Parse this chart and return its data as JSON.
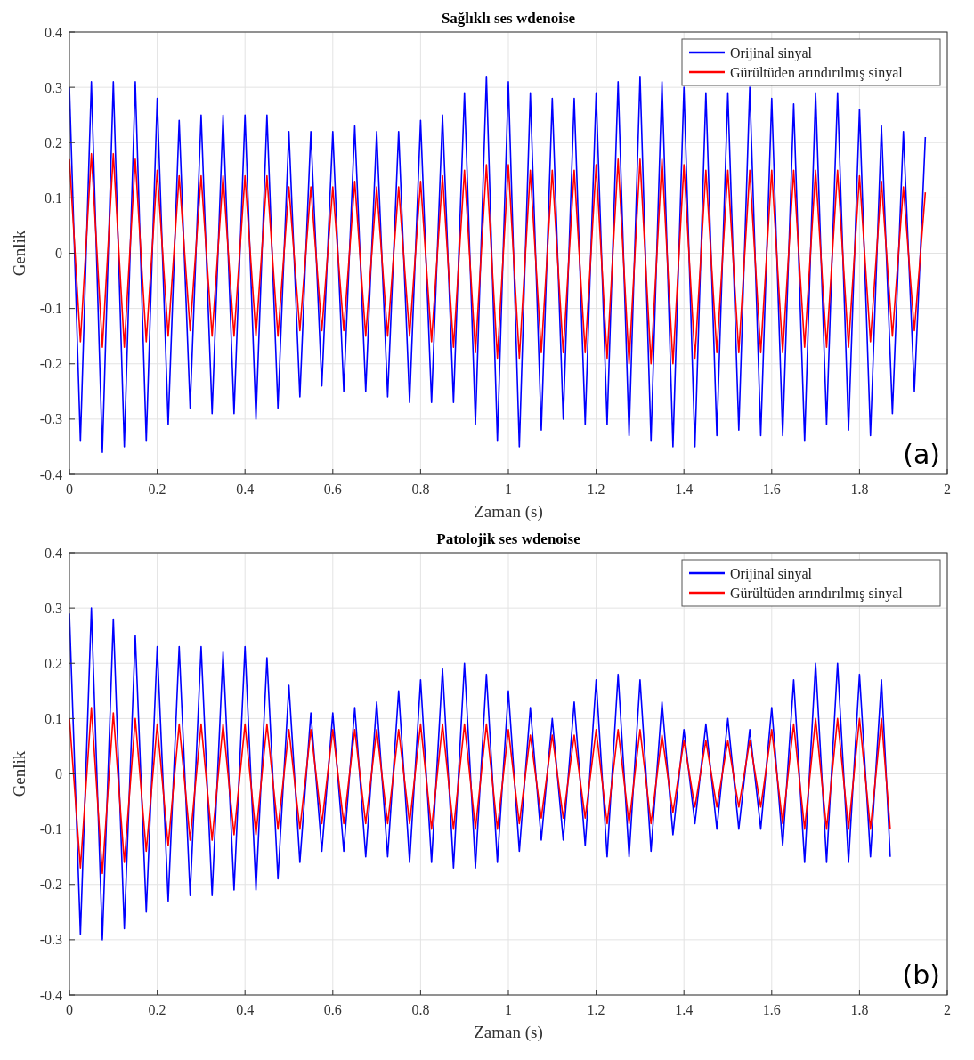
{
  "chart_data": [
    {
      "type": "line",
      "title": "Sağlıklı ses wdenoise",
      "xlabel": "Zaman (s)",
      "ylabel": "Genlik",
      "xlim": [
        0,
        2
      ],
      "xticks": [
        0,
        0.2,
        0.4,
        0.6,
        0.8,
        1,
        1.2,
        1.4,
        1.6,
        1.8,
        2
      ],
      "ylim": [
        -0.4,
        0.4
      ],
      "yticks": [
        -0.4,
        -0.3,
        -0.2,
        -0.1,
        0,
        0.1,
        0.2,
        0.3,
        0.4
      ],
      "grid": true,
      "legend": "top right",
      "annotations": [
        "(a)"
      ],
      "x": [
        0,
        0.025,
        0.05,
        0.075,
        0.1,
        0.125,
        0.15,
        0.175,
        0.2,
        0.225,
        0.25,
        0.275,
        0.3,
        0.325,
        0.35,
        0.375,
        0.4,
        0.425,
        0.45,
        0.475,
        0.5,
        0.525,
        0.55,
        0.575,
        0.6,
        0.625,
        0.65,
        0.675,
        0.7,
        0.725,
        0.75,
        0.775,
        0.8,
        0.825,
        0.85,
        0.875,
        0.9,
        0.925,
        0.95,
        0.975,
        1,
        1.025,
        1.05,
        1.075,
        1.1,
        1.125,
        1.15,
        1.175,
        1.2,
        1.225,
        1.25,
        1.275,
        1.3,
        1.325,
        1.35,
        1.375,
        1.4,
        1.425,
        1.45,
        1.475,
        1.5,
        1.525,
        1.55,
        1.575,
        1.6,
        1.625,
        1.65,
        1.675,
        1.7,
        1.725,
        1.75,
        1.775,
        1.8,
        1.825,
        1.85,
        1.875,
        1.9,
        1.925,
        1.95
      ],
      "series": [
        {
          "name": "Orijinal sinyal",
          "color": "#0000ff",
          "values": [
            0.3,
            -0.34,
            0.31,
            -0.36,
            0.31,
            -0.35,
            0.31,
            -0.34,
            0.28,
            -0.31,
            0.24,
            -0.28,
            0.25,
            -0.29,
            0.25,
            -0.29,
            0.25,
            -0.3,
            0.25,
            -0.28,
            0.22,
            -0.26,
            0.22,
            -0.24,
            0.22,
            -0.25,
            0.23,
            -0.25,
            0.22,
            -0.26,
            0.22,
            -0.27,
            0.24,
            -0.27,
            0.25,
            -0.27,
            0.29,
            -0.31,
            0.32,
            -0.34,
            0.31,
            -0.35,
            0.29,
            -0.32,
            0.28,
            -0.3,
            0.28,
            -0.31,
            0.29,
            -0.31,
            0.31,
            -0.33,
            0.32,
            -0.34,
            0.31,
            -0.35,
            0.3,
            -0.35,
            0.29,
            -0.33,
            0.29,
            -0.32,
            0.3,
            -0.33,
            0.28,
            -0.33,
            0.27,
            -0.34,
            0.29,
            -0.31,
            0.29,
            -0.32,
            0.26,
            -0.33,
            0.23,
            -0.29,
            0.22,
            -0.25,
            0.21
          ]
        },
        {
          "name": "Gürültüden arındırılmış sinyal",
          "color": "#ff0000",
          "values": [
            0.17,
            -0.16,
            0.18,
            -0.17,
            0.18,
            -0.17,
            0.17,
            -0.16,
            0.15,
            -0.15,
            0.14,
            -0.14,
            0.14,
            -0.15,
            0.14,
            -0.15,
            0.14,
            -0.15,
            0.14,
            -0.15,
            0.12,
            -0.14,
            0.12,
            -0.14,
            0.12,
            -0.14,
            0.13,
            -0.15,
            0.12,
            -0.15,
            0.12,
            -0.15,
            0.13,
            -0.16,
            0.14,
            -0.17,
            0.15,
            -0.18,
            0.16,
            -0.19,
            0.16,
            -0.19,
            0.15,
            -0.18,
            0.15,
            -0.18,
            0.15,
            -0.18,
            0.16,
            -0.19,
            0.17,
            -0.2,
            0.17,
            -0.2,
            0.17,
            -0.2,
            0.16,
            -0.19,
            0.15,
            -0.18,
            0.15,
            -0.18,
            0.15,
            -0.18,
            0.15,
            -0.18,
            0.15,
            -0.17,
            0.15,
            -0.17,
            0.15,
            -0.17,
            0.14,
            -0.16,
            0.13,
            -0.15,
            0.12,
            -0.14,
            0.11
          ]
        }
      ]
    },
    {
      "type": "line",
      "title": "Patolojik ses wdenoise",
      "xlabel": "Zaman (s)",
      "ylabel": "Genlik",
      "xlim": [
        0,
        2
      ],
      "xticks": [
        0,
        0.2,
        0.4,
        0.6,
        0.8,
        1,
        1.2,
        1.4,
        1.6,
        1.8,
        2
      ],
      "ylim": [
        -0.4,
        0.4
      ],
      "yticks": [
        -0.4,
        -0.3,
        -0.2,
        -0.1,
        0,
        0.1,
        0.2,
        0.3,
        0.4
      ],
      "grid": true,
      "legend": "top right",
      "annotations": [
        "(b)"
      ],
      "x": [
        0,
        0.025,
        0.05,
        0.075,
        0.1,
        0.125,
        0.15,
        0.175,
        0.2,
        0.225,
        0.25,
        0.275,
        0.3,
        0.325,
        0.35,
        0.375,
        0.4,
        0.425,
        0.45,
        0.475,
        0.5,
        0.525,
        0.55,
        0.575,
        0.6,
        0.625,
        0.65,
        0.675,
        0.7,
        0.725,
        0.75,
        0.775,
        0.8,
        0.825,
        0.85,
        0.875,
        0.9,
        0.925,
        0.95,
        0.975,
        1,
        1.025,
        1.05,
        1.075,
        1.1,
        1.125,
        1.15,
        1.175,
        1.2,
        1.225,
        1.25,
        1.275,
        1.3,
        1.325,
        1.35,
        1.375,
        1.4,
        1.425,
        1.45,
        1.475,
        1.5,
        1.525,
        1.55,
        1.575,
        1.6,
        1.625,
        1.65,
        1.675,
        1.7,
        1.725,
        1.75,
        1.775,
        1.8,
        1.825,
        1.85,
        1.87
      ],
      "series": [
        {
          "name": "Orijinal sinyal",
          "color": "#0000ff",
          "values": [
            0.29,
            -0.29,
            0.3,
            -0.3,
            0.28,
            -0.28,
            0.25,
            -0.25,
            0.23,
            -0.23,
            0.23,
            -0.22,
            0.23,
            -0.22,
            0.22,
            -0.21,
            0.23,
            -0.21,
            0.21,
            -0.19,
            0.16,
            -0.16,
            0.11,
            -0.14,
            0.11,
            -0.14,
            0.12,
            -0.15,
            0.13,
            -0.15,
            0.15,
            -0.16,
            0.17,
            -0.16,
            0.19,
            -0.17,
            0.2,
            -0.17,
            0.18,
            -0.16,
            0.15,
            -0.14,
            0.12,
            -0.12,
            0.1,
            -0.12,
            0.13,
            -0.13,
            0.17,
            -0.15,
            0.18,
            -0.15,
            0.17,
            -0.14,
            0.13,
            -0.11,
            0.08,
            -0.09,
            0.09,
            -0.1,
            0.1,
            -0.1,
            0.08,
            -0.1,
            0.12,
            -0.13,
            0.17,
            -0.16,
            0.2,
            -0.16,
            0.2,
            -0.16,
            0.18,
            -0.15,
            0.17,
            -0.15
          ]
        },
        {
          "name": "Gürültüden arındırılmış sinyal",
          "color": "#ff0000",
          "values": [
            0.1,
            -0.17,
            0.12,
            -0.18,
            0.11,
            -0.16,
            0.1,
            -0.14,
            0.09,
            -0.13,
            0.09,
            -0.12,
            0.09,
            -0.12,
            0.09,
            -0.11,
            0.09,
            -0.11,
            0.09,
            -0.1,
            0.08,
            -0.1,
            0.08,
            -0.09,
            0.08,
            -0.09,
            0.08,
            -0.09,
            0.08,
            -0.09,
            0.08,
            -0.09,
            0.09,
            -0.1,
            0.09,
            -0.1,
            0.09,
            -0.1,
            0.09,
            -0.1,
            0.08,
            -0.09,
            0.07,
            -0.08,
            0.07,
            -0.08,
            0.07,
            -0.08,
            0.08,
            -0.09,
            0.08,
            -0.09,
            0.08,
            -0.09,
            0.07,
            -0.07,
            0.06,
            -0.06,
            0.06,
            -0.06,
            0.06,
            -0.06,
            0.06,
            -0.06,
            0.08,
            -0.09,
            0.09,
            -0.1,
            0.1,
            -0.1,
            0.1,
            -0.1,
            0.1,
            -0.1,
            0.1,
            -0.1
          ]
        }
      ]
    }
  ]
}
